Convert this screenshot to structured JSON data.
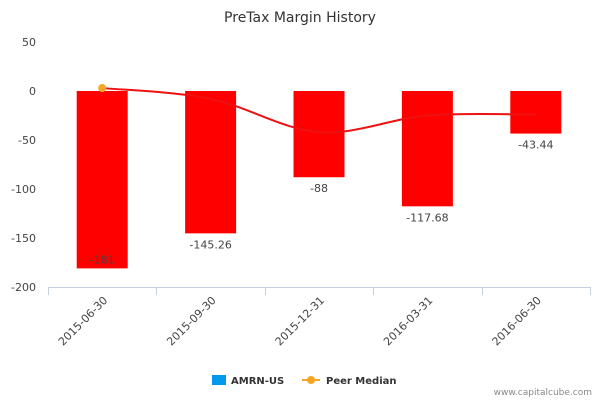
{
  "chart_data": {
    "type": "bar",
    "title": "PreTax Margin History",
    "categories": [
      "2015-06-30",
      "2015-09-30",
      "2015-12-31",
      "2016-03-31",
      "2016-06-30"
    ],
    "ylim": [
      -200,
      50
    ],
    "yticks": [
      50,
      0,
      -50,
      -100,
      -150,
      -200
    ],
    "grid": false,
    "legend_position": "bottom",
    "series": [
      {
        "name": "AMRN-US",
        "kind": "bar",
        "bar_color": "#ff0000",
        "legend_color": "#0099ee",
        "values": [
          -181,
          -145.26,
          -88,
          -117.68,
          -43.44
        ],
        "labels": [
          "-181",
          "-145.26",
          "-88",
          "-117.68",
          "-43.44"
        ]
      },
      {
        "name": "Peer Median",
        "kind": "line",
        "line_color": "#ee1111",
        "marker_color": "#f5a623",
        "values": [
          3,
          -8,
          -42,
          -25,
          -24
        ]
      }
    ]
  },
  "credit": "www.capitalcube.com"
}
